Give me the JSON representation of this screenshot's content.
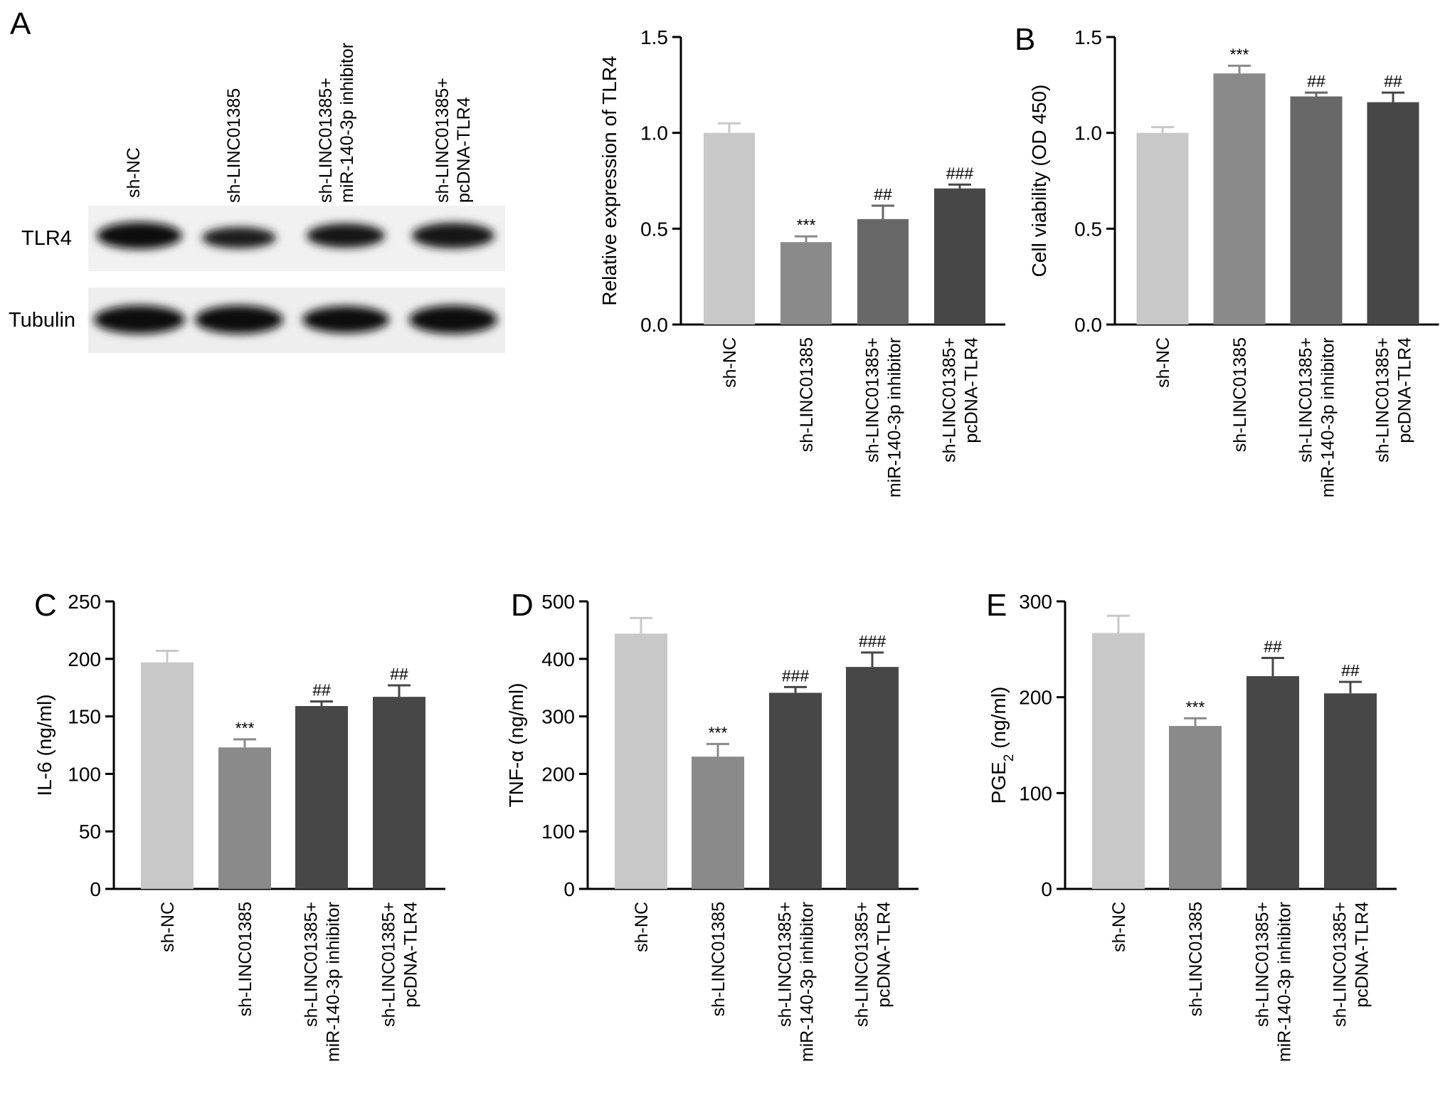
{
  "panel_labels": [
    "A",
    "B",
    "C",
    "D",
    "E"
  ],
  "western_blot": {
    "lanes": [
      [
        "sh-NC"
      ],
      [
        "sh-LINC01385"
      ],
      [
        "sh-LINC01385+",
        "miR-140-3p inhibitor"
      ],
      [
        "sh-LINC01385+",
        "pcDNA-TLR4"
      ]
    ],
    "rows": [
      "TLR4",
      "Tubulin"
    ],
    "band_intensity": {
      "TLR4": [
        0.95,
        0.8,
        0.88,
        0.92
      ],
      "Tubulin": [
        0.98,
        0.96,
        0.95,
        0.96
      ]
    }
  },
  "colors": {
    "sh-NC": "#c8c8c8",
    "sh-LINC01385": "#8a8a8a",
    "inhibitor_light": "#686868",
    "dark": "#474747",
    "axis": "#000000"
  },
  "chart_data": [
    {
      "id": "A",
      "type": "bar",
      "ylabel": "Relative expression of TLR4",
      "ylim": [
        0,
        1.5
      ],
      "yticks": [
        "0.0",
        "0.5",
        "1.0",
        "1.5"
      ],
      "categories": [
        [
          "sh-NC"
        ],
        [
          "sh-LINC01385"
        ],
        [
          "sh-LINC01385+",
          "miR-140-3p inhibitor"
        ],
        [
          "sh-LINC01385+",
          "pcDNA-TLR4"
        ]
      ],
      "values": [
        1.0,
        0.43,
        0.55,
        0.71
      ],
      "errors": [
        0.05,
        0.03,
        0.07,
        0.02
      ],
      "annotations": [
        "",
        "***",
        "##",
        "###"
      ],
      "bar_colors": [
        "#c8c8c8",
        "#8a8a8a",
        "#686868",
        "#474747"
      ]
    },
    {
      "id": "B",
      "type": "bar",
      "ylabel": "Cell viability (OD 450)",
      "ylim": [
        0,
        1.5
      ],
      "yticks": [
        "0.0",
        "0.5",
        "1.0",
        "1.5"
      ],
      "categories": [
        [
          "sh-NC"
        ],
        [
          "sh-LINC01385"
        ],
        [
          "sh-LINC01385+",
          "miR-140-3p inhibitor"
        ],
        [
          "sh-LINC01385+",
          "pcDNA-TLR4"
        ]
      ],
      "values": [
        1.0,
        1.31,
        1.19,
        1.16
      ],
      "errors": [
        0.03,
        0.04,
        0.02,
        0.05
      ],
      "annotations": [
        "",
        "***",
        "##",
        "##"
      ],
      "bar_colors": [
        "#c8c8c8",
        "#8a8a8a",
        "#686868",
        "#474747"
      ]
    },
    {
      "id": "C",
      "type": "bar",
      "ylabel": "IL-6 (ng/ml)",
      "ylim": [
        0,
        250
      ],
      "yticks": [
        "0",
        "50",
        "100",
        "150",
        "200",
        "250"
      ],
      "categories": [
        [
          "sh-NC"
        ],
        [
          "sh-LINC01385"
        ],
        [
          "sh-LINC01385+",
          "miR-140-3p inhibitor"
        ],
        [
          "sh-LINC01385+",
          "pcDNA-TLR4"
        ]
      ],
      "values": [
        197,
        123,
        159,
        167
      ],
      "errors": [
        10,
        7,
        4,
        10
      ],
      "annotations": [
        "",
        "***",
        "##",
        "##"
      ],
      "bar_colors": [
        "#c8c8c8",
        "#8a8a8a",
        "#474747",
        "#474747"
      ]
    },
    {
      "id": "D",
      "type": "bar",
      "ylabel": "TNF-α (ng/ml)",
      "ylim": [
        0,
        500
      ],
      "yticks": [
        "0",
        "100",
        "200",
        "300",
        "400",
        "500"
      ],
      "categories": [
        [
          "sh-NC"
        ],
        [
          "sh-LINC01385"
        ],
        [
          "sh-LINC01385+",
          "miR-140-3p inhibitor"
        ],
        [
          "sh-LINC01385+",
          "pcDNA-TLR4"
        ]
      ],
      "values": [
        444,
        230,
        341,
        386
      ],
      "errors": [
        27,
        22,
        10,
        25
      ],
      "annotations": [
        "",
        "***",
        "###",
        "###"
      ],
      "bar_colors": [
        "#c8c8c8",
        "#8a8a8a",
        "#474747",
        "#474747"
      ]
    },
    {
      "id": "E",
      "type": "bar",
      "ylabel": "PGE",
      "ylabel_sub": "2",
      "ylabel_tail": " (ng/ml)",
      "ylim": [
        0,
        300
      ],
      "yticks": [
        "0",
        "100",
        "200",
        "300"
      ],
      "categories": [
        [
          "sh-NC"
        ],
        [
          "sh-LINC01385"
        ],
        [
          "sh-LINC01385+",
          "miR-140-3p inhibitor"
        ],
        [
          "sh-LINC01385+",
          "pcDNA-TLR4"
        ]
      ],
      "values": [
        267,
        170,
        222,
        204
      ],
      "errors": [
        18,
        8,
        19,
        12
      ],
      "annotations": [
        "",
        "***",
        "##",
        "##"
      ],
      "bar_colors": [
        "#c8c8c8",
        "#8a8a8a",
        "#474747",
        "#474747"
      ]
    }
  ]
}
